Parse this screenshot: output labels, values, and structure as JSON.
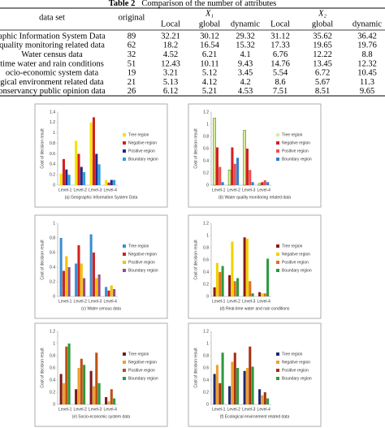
{
  "table": {
    "label": "Table 2",
    "caption": "Comparison of the number of attributes",
    "header": [
      [
        "data set",
        "original",
        "X₁",
        "X₂"
      ],
      [
        "Local",
        "global",
        "dynamic",
        "Local",
        "global",
        "dynamic"
      ]
    ],
    "rows": [
      [
        "aphic Information System Data",
        "89",
        "32.21",
        "30.12",
        "29.32",
        "31.12",
        "35.62",
        "36.42"
      ],
      [
        "quality monitoring related data",
        "62",
        "18.2",
        "16.54",
        "15.32",
        "17.33",
        "19.65",
        "19.76"
      ],
      [
        "Water census data",
        "32",
        "4.52",
        "6.21",
        "4.1",
        "6.76",
        "12.22",
        "8.8"
      ],
      [
        "time water and rain conditions",
        "51",
        "12.43",
        "10.11",
        "9.43",
        "14.76",
        "13.45",
        "12.32"
      ],
      [
        "ocio-economic system data",
        "19",
        "3.21",
        "5.12",
        "3.45",
        "5.54",
        "6.72",
        "10.45"
      ],
      [
        "gical environment related data",
        "21",
        "5.13",
        "4.12",
        "4.2",
        "8.6",
        "5.67",
        "11.3"
      ],
      [
        "onservancy public opinion data",
        "26",
        "6.12",
        "5.21",
        "4.53",
        "7.51",
        "8.51",
        "9.65"
      ]
    ]
  },
  "chart_data": [
    {
      "type": "bar",
      "caption": "(a) Geographic Information System Data",
      "y_label": "Cost of decision result",
      "categories": [
        "Level-1",
        "Level-2",
        "Level-3",
        "Level-4"
      ],
      "ylim": [
        0,
        1.4
      ],
      "yticks": [
        0,
        0.2,
        0.4,
        0.6,
        0.8,
        1,
        1.2,
        1.4
      ],
      "grid": false,
      "legend": "right",
      "series": [
        {
          "name": "Tree region",
          "color": "#f2e300",
          "values": [
            0.22,
            0.85,
            1.2,
            0.1
          ]
        },
        {
          "name": "Negative region",
          "color": "#d42020",
          "values": [
            0.5,
            0.6,
            1.3,
            0.05
          ]
        },
        {
          "name": "Positive region",
          "color": "#1f2a8a",
          "values": [
            0.3,
            0.35,
            0.6,
            0.1
          ]
        },
        {
          "name": "Boundary region",
          "color": "#2c9fe0",
          "values": [
            0.2,
            0.25,
            0.4,
            0.1
          ]
        }
      ]
    },
    {
      "type": "bar",
      "caption": "(b) Water quality monitoring related data",
      "y_label": "Cost of decision result",
      "categories": [
        "Level-1",
        "Level-2",
        "Level-3",
        "Level-4"
      ],
      "ylim": [
        0,
        1.2
      ],
      "yticks": [
        0,
        0.2,
        0.4,
        0.6,
        0.8,
        1,
        1.2
      ],
      "grid": false,
      "legend": "right",
      "series": [
        {
          "name": "Tree region",
          "color": "#d8ec9a",
          "values": [
            1.1,
            0.25,
            0.9,
            0.03
          ]
        },
        {
          "name": "Negative region",
          "color": "#d42020",
          "values": [
            0.62,
            0.62,
            0.6,
            0.05
          ]
        },
        {
          "name": "Positive region",
          "color": "#e85050",
          "values": [
            0.3,
            0.35,
            0.25,
            0.08
          ]
        },
        {
          "name": "Boundary region",
          "color": "#2f7fd0",
          "values": [
            0.05,
            0.45,
            0.05,
            0.05
          ]
        }
      ]
    },
    {
      "type": "bar",
      "caption": "(c) Water census data",
      "y_label": "Cost of decision result",
      "categories": [
        "Level-1",
        "Level-2",
        "Level-3",
        "Level-4"
      ],
      "ylim": [
        0,
        1
      ],
      "yticks": [
        0,
        0.2,
        0.4,
        0.6,
        0.8,
        1
      ],
      "grid": false,
      "legend": "right",
      "series": [
        {
          "name": "Tree region",
          "color": "#3a8fd0",
          "values": [
            0.8,
            0.45,
            0.85,
            0.13
          ]
        },
        {
          "name": "Negative region",
          "color": "#d42020",
          "values": [
            0.35,
            0.7,
            0.6,
            0.08
          ]
        },
        {
          "name": "Positive region",
          "color": "#f2c200",
          "values": [
            0.55,
            0.45,
            0.25,
            0.15
          ]
        },
        {
          "name": "Boundary region",
          "color": "#9a4a8a",
          "values": [
            0.4,
            0.25,
            0.3,
            0.1
          ]
        }
      ]
    },
    {
      "type": "bar",
      "caption": "(d) Real-time water and rain conditions",
      "y_label": "Cost of decision result",
      "categories": [
        "Level-1",
        "Level-2",
        "Level-3",
        "Level-4"
      ],
      "ylim": [
        0,
        1.2
      ],
      "yticks": [
        0,
        0.2,
        0.4,
        0.6,
        0.8,
        1,
        1.2
      ],
      "grid": false,
      "legend": "right",
      "series": [
        {
          "name": "Tree region",
          "color": "#8b1a1a",
          "values": [
            0.15,
            0.35,
            0.97,
            0.07
          ]
        },
        {
          "name": "Negative region",
          "color": "#f2d200",
          "values": [
            0.55,
            0.9,
            0.95,
            0.05
          ]
        },
        {
          "name": "Positive region",
          "color": "#e07020",
          "values": [
            0.4,
            0.25,
            0.25,
            0.05
          ]
        },
        {
          "name": "Boundary region",
          "color": "#2e9a40",
          "values": [
            0.5,
            0.3,
            0.05,
            0.62
          ]
        }
      ]
    },
    {
      "type": "bar",
      "caption": "(e) Socio-economic system data",
      "y_label": "Cost of decision result",
      "categories": [
        "Level-1",
        "Level-2",
        "Level-3",
        "Level-4"
      ],
      "ylim": [
        0,
        1.2
      ],
      "yticks": [
        0,
        0.2,
        0.4,
        0.6,
        0.8,
        1,
        1.2
      ],
      "grid": false,
      "legend": "right",
      "series": [
        {
          "name": "Tree region",
          "color": "#7a1a1a",
          "values": [
            0.5,
            0.25,
            0.55,
            0.12
          ]
        },
        {
          "name": "Negative region",
          "color": "#f0a030",
          "values": [
            0.35,
            0.6,
            0.3,
            0.05
          ]
        },
        {
          "name": "Positive region",
          "color": "#c05010",
          "values": [
            0.95,
            0.75,
            0.85,
            0.25
          ]
        },
        {
          "name": "Boundary region",
          "color": "#2e9a40",
          "values": [
            1.0,
            0.65,
            0.35,
            0.1
          ]
        }
      ]
    },
    {
      "type": "bar",
      "caption": "(f) Ecological environment related data",
      "y_label": "Cost of decision result",
      "categories": [
        "Level-1",
        "Level-2",
        "Level-3",
        "Level-4"
      ],
      "ylim": [
        0,
        1.2
      ],
      "yticks": [
        0,
        0.2,
        0.4,
        0.6,
        0.8,
        1,
        1.2
      ],
      "grid": false,
      "legend": "right",
      "series": [
        {
          "name": "Tree region",
          "color": "#1f2a70",
          "values": [
            0.5,
            0.3,
            0.55,
            0.25
          ]
        },
        {
          "name": "Negative region",
          "color": "#f0a030",
          "values": [
            0.65,
            0.7,
            0.6,
            0.15
          ]
        },
        {
          "name": "Positive region",
          "color": "#a83010",
          "values": [
            0.35,
            0.85,
            0.95,
            0.2
          ]
        },
        {
          "name": "Boundary region",
          "color": "#2e9a40",
          "values": [
            0.85,
            0.6,
            0.62,
            0.1
          ]
        }
      ]
    }
  ]
}
